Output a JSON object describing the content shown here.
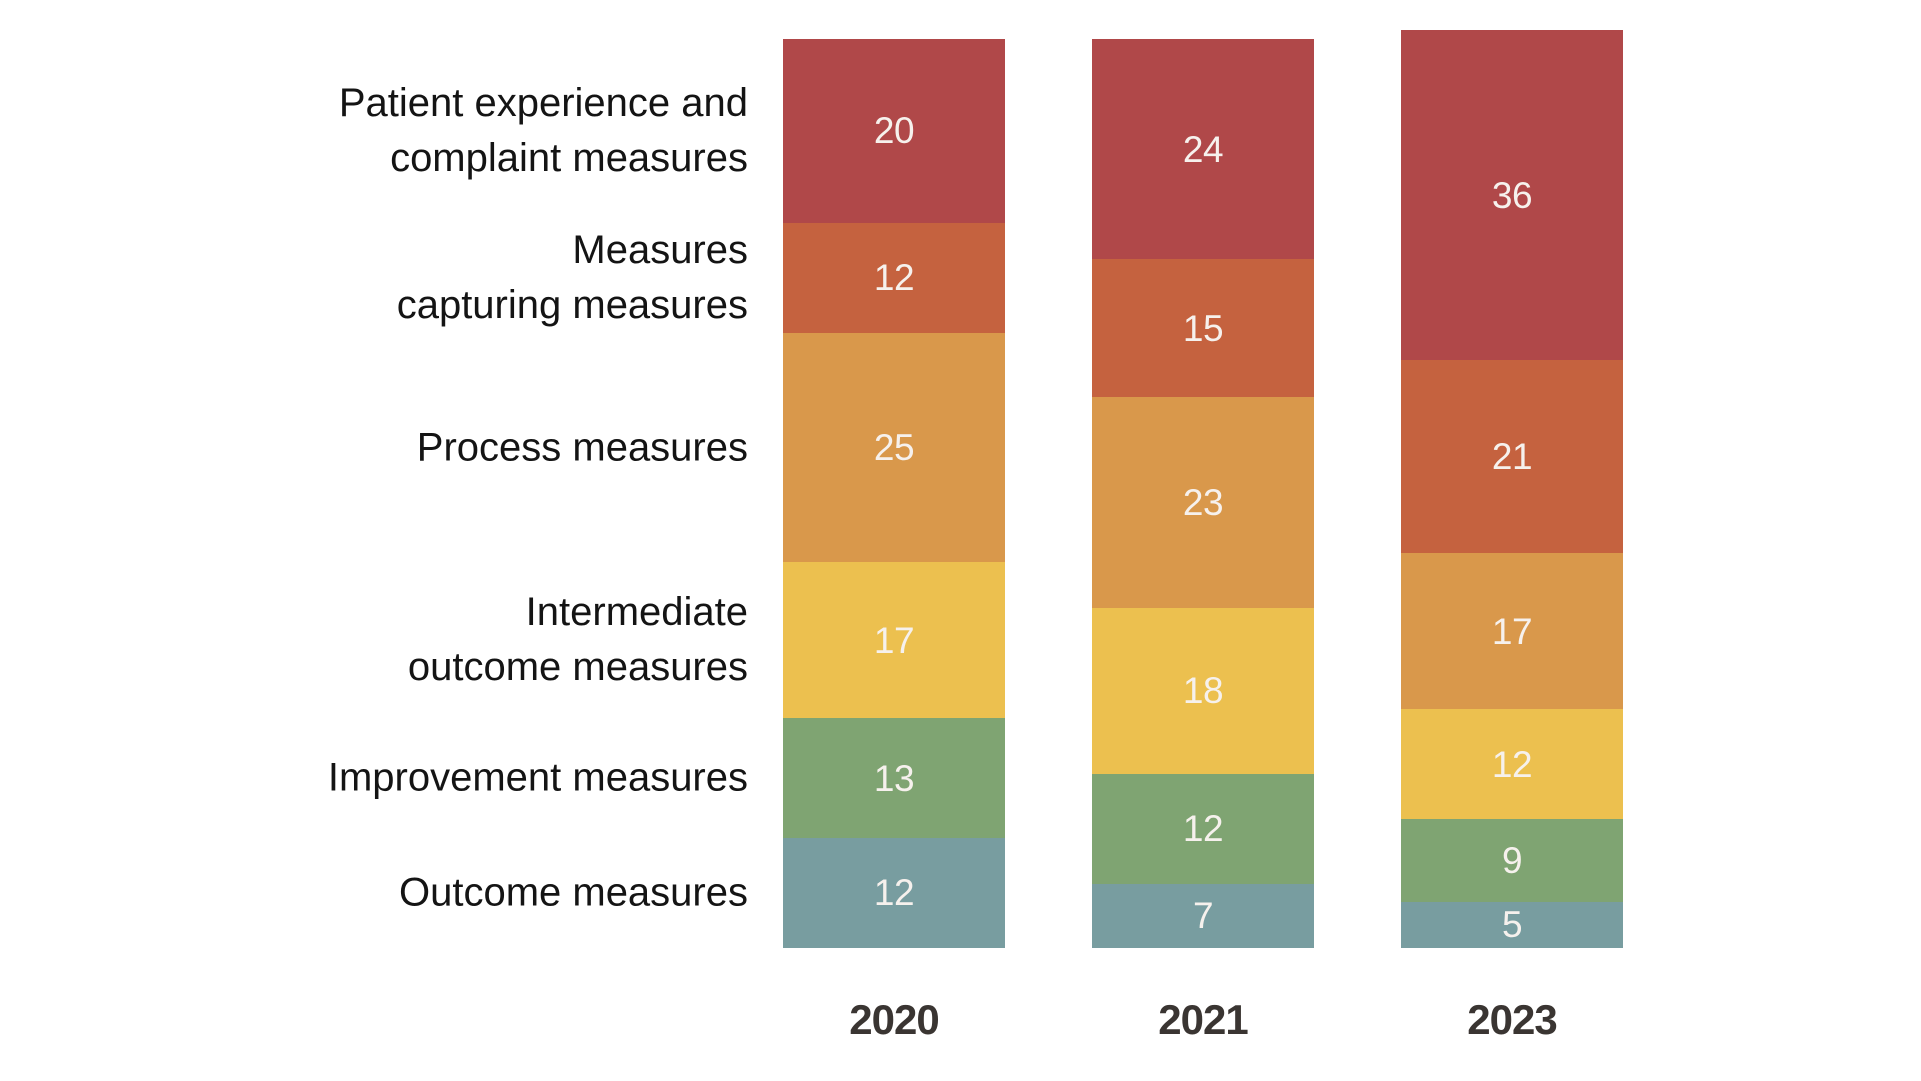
{
  "chart_data": {
    "type": "bar",
    "stacked": true,
    "orientation": "vertical",
    "title": "",
    "categories": [
      "2020",
      "2021",
      "2023"
    ],
    "series": [
      {
        "name": "Patient experience and complaint measures",
        "label_lines": "Patient experience and\ncomplaint measures",
        "color": "#b04849",
        "values": [
          20,
          24,
          36
        ]
      },
      {
        "name": "Measures capturing measures",
        "label_lines": "Measures\ncapturing measures",
        "color": "#c5623f",
        "values": [
          12,
          15,
          21
        ]
      },
      {
        "name": "Process measures",
        "label_lines": "Process measures",
        "color": "#d9984b",
        "values": [
          25,
          23,
          17
        ]
      },
      {
        "name": "Intermediate outcome measures",
        "label_lines": "Intermediate\noutcome measures",
        "color": "#ecc04f",
        "values": [
          17,
          18,
          12
        ]
      },
      {
        "name": "Improvement measures",
        "label_lines": "Improvement measures",
        "color": "#7fa472",
        "values": [
          13,
          12,
          9
        ]
      },
      {
        "name": "Outcome measures",
        "label_lines": "Outcome measures",
        "color": "#789da0",
        "values": [
          12,
          7,
          5
        ]
      }
    ],
    "value_labels_inside_segments": true,
    "value_label_color": "#f6f1ed",
    "category_label_color": "#141414",
    "year_label_color": "#3a3532",
    "background": "#ffffff",
    "legend_position": "row-labels-left",
    "axes": "none"
  }
}
